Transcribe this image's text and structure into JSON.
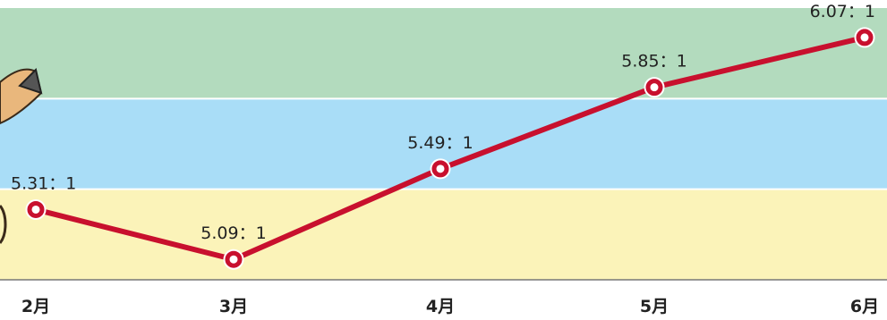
{
  "chart_data": {
    "type": "line",
    "categories": [
      "2月",
      "3月",
      "4月",
      "5月",
      "6月"
    ],
    "series": [
      {
        "values": [
          5.31,
          5.09,
          5.49,
          5.85,
          6.07
        ],
        "color": "#c8102e"
      }
    ],
    "data_labels": [
      "5.31：1",
      "5.09：1",
      "5.49：1",
      "5.85：1",
      "6.07：1"
    ],
    "ylim": [
      5.0,
      6.2
    ],
    "bands": [
      {
        "from": 5.0,
        "to": 5.4,
        "color": "#fbf3b9"
      },
      {
        "from": 5.4,
        "to": 5.8,
        "color": "#a9ddf7"
      },
      {
        "from": 5.8,
        "to": 6.2,
        "color": "#b3dbbe"
      }
    ],
    "grid": false
  }
}
